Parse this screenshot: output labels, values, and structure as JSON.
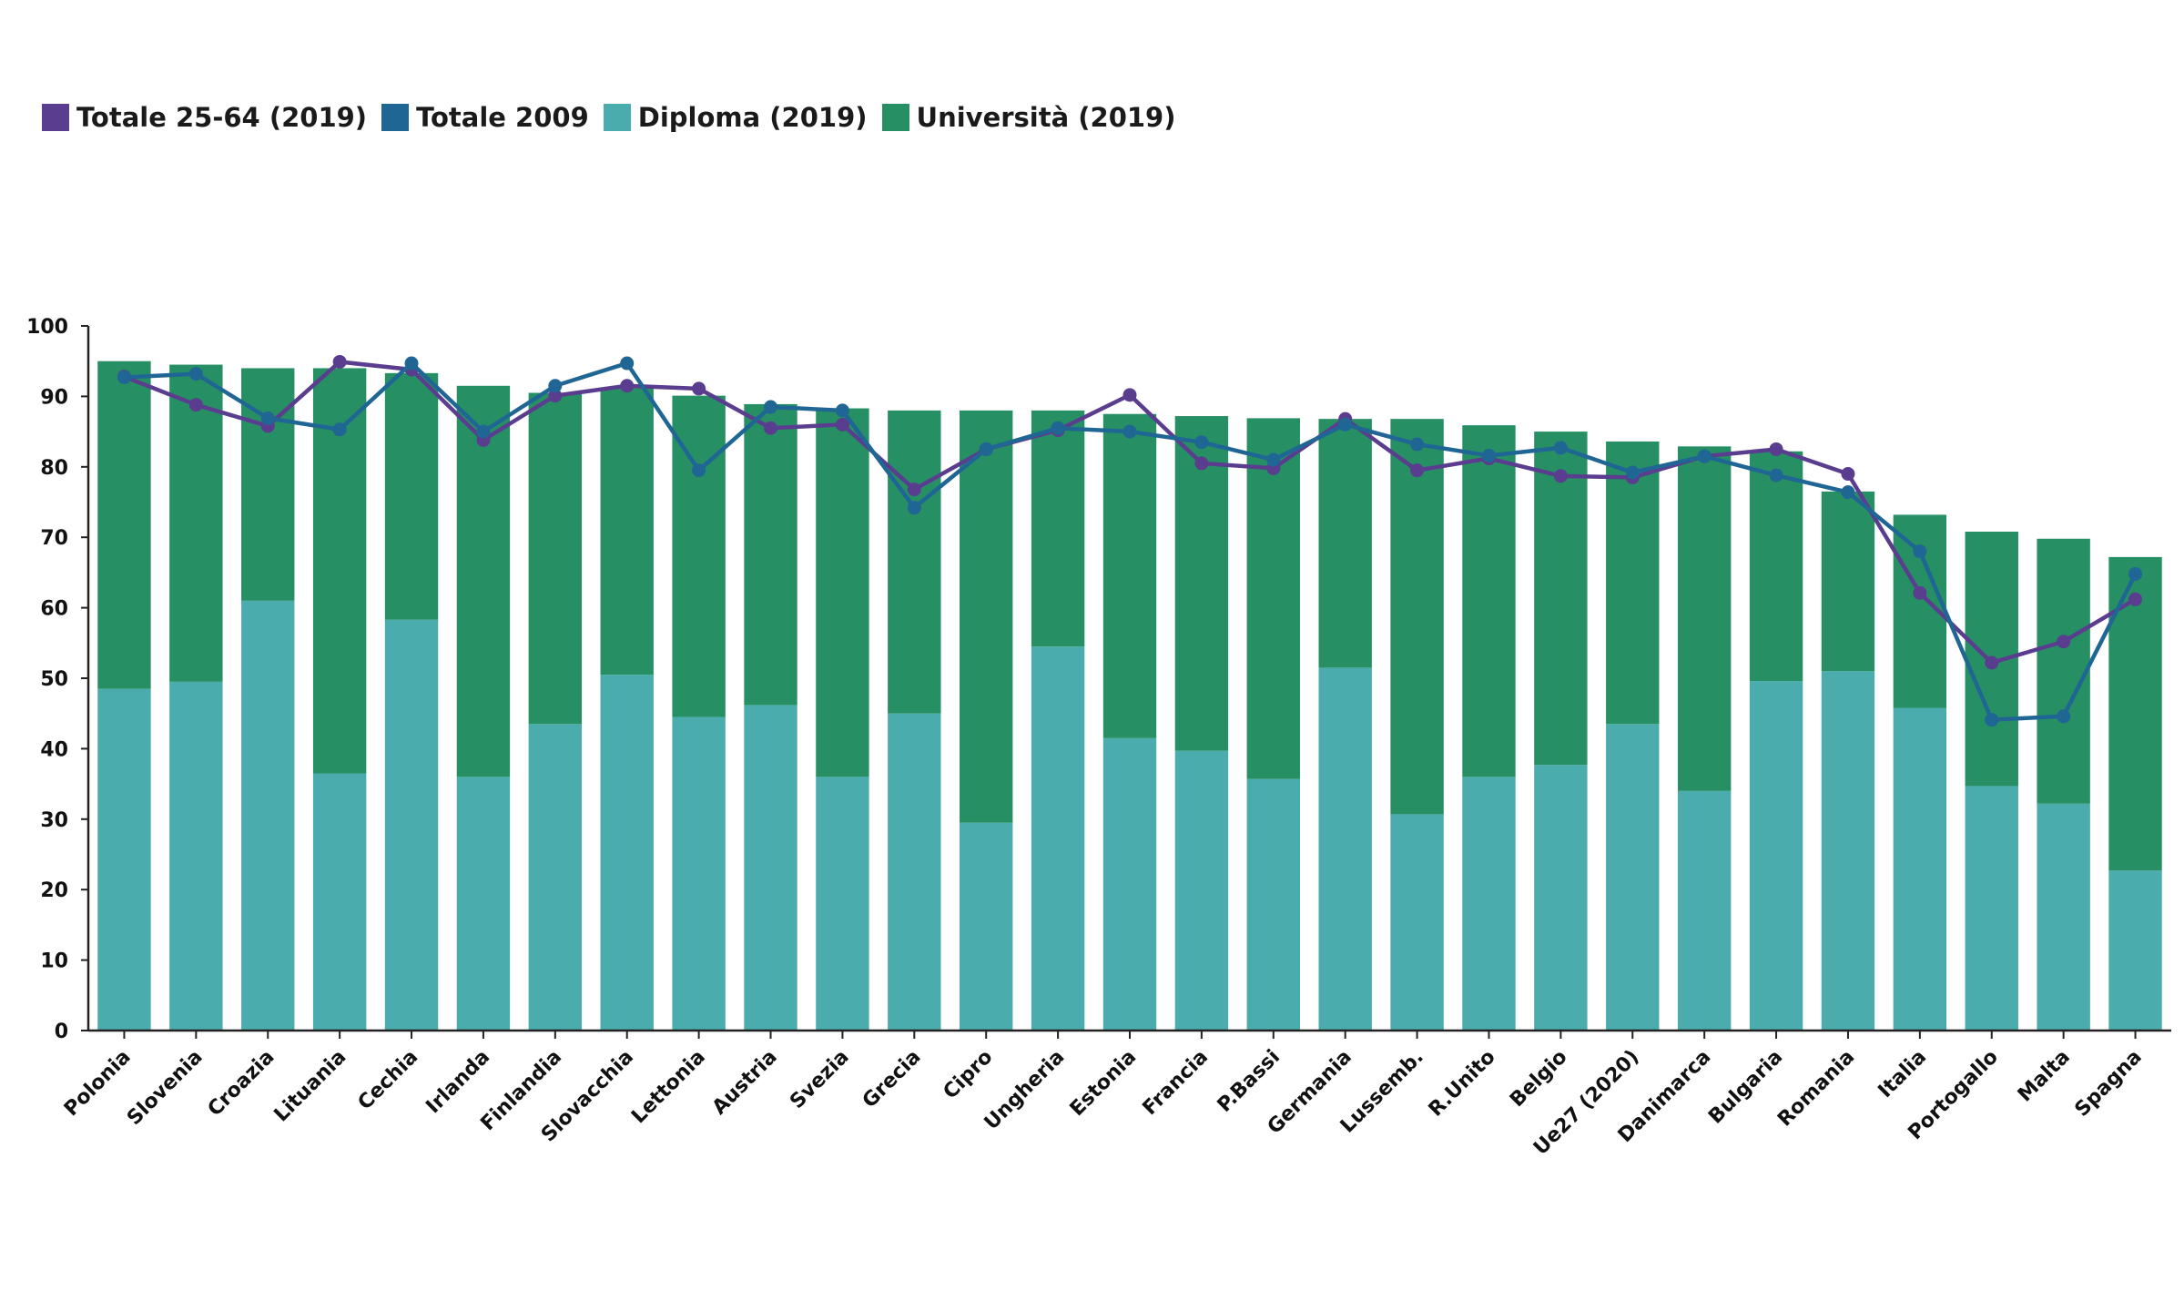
{
  "legend": [
    {
      "label": "Totale 25-64 (2019)",
      "color": "#5b3d8f"
    },
    {
      "label": "Totale 2009",
      "color": "#1f6694"
    },
    {
      "label": "Diploma (2019)",
      "color": "#4aacac"
    },
    {
      "label": "Università (2019)",
      "color": "#268f63"
    }
  ],
  "chart_data": {
    "type": "bar",
    "stacked": true,
    "ylim": [
      0,
      100
    ],
    "yticks": [
      0,
      10,
      20,
      30,
      40,
      50,
      60,
      70,
      80,
      90,
      100
    ],
    "grid": false,
    "legend_position": "top-left",
    "categories": [
      "Polonia",
      "Slovenia",
      "Croazia",
      "Lituania",
      "Cechia",
      "Irlanda",
      "Finlandia",
      "Slovacchia",
      "Lettonia",
      "Austria",
      "Svezia",
      "Grecia",
      "Cipro",
      "Ungheria",
      "Estonia",
      "Francia",
      "P.Bassi",
      "Germania",
      "Lussemb.",
      "R.Unito",
      "Belgio",
      "Ue27 (2020)",
      "Danimarca",
      "Bulgaria",
      "Romania",
      "Italia",
      "Portogallo",
      "Malta",
      "Spagna"
    ],
    "series": [
      {
        "name": "Diploma (2019)",
        "kind": "bar",
        "color": "#4aacac",
        "values": [
          48.5,
          49.5,
          61.0,
          36.5,
          58.3,
          36.0,
          43.5,
          50.5,
          44.5,
          46.2,
          36.0,
          45.0,
          29.5,
          54.5,
          41.5,
          39.7,
          35.7,
          51.5,
          30.7,
          36.0,
          37.7,
          43.5,
          34.0,
          49.6,
          51.0,
          45.8,
          34.7,
          32.2,
          22.7
        ]
      },
      {
        "name": "Università (2019)",
        "kind": "bar",
        "color": "#268f63",
        "values": [
          46.5,
          45.0,
          33.0,
          57.5,
          35.0,
          55.5,
          47.0,
          40.7,
          45.6,
          42.7,
          52.3,
          43.0,
          58.5,
          33.5,
          46.0,
          47.5,
          51.2,
          35.3,
          56.1,
          49.9,
          47.3,
          40.1,
          48.9,
          32.6,
          25.5,
          27.4,
          36.1,
          37.6,
          44.5
        ]
      },
      {
        "name": "Totale 25-64 (2019)",
        "kind": "line",
        "color": "#5b3d8f",
        "values": [
          92.8,
          88.8,
          85.8,
          94.9,
          93.8,
          83.8,
          90.1,
          91.5,
          91.1,
          85.5,
          86.0,
          76.8,
          82.5,
          85.2,
          90.2,
          80.5,
          79.8,
          86.8,
          79.5,
          81.2,
          78.7,
          78.5,
          81.5,
          82.5,
          79.0,
          62.1,
          52.2,
          55.2,
          61.2
        ]
      },
      {
        "name": "Totale 2009",
        "kind": "line",
        "color": "#1f6694",
        "values": [
          92.7,
          93.2,
          86.9,
          85.3,
          94.7,
          85.0,
          91.5,
          94.7,
          79.5,
          88.5,
          88.0,
          74.2,
          82.5,
          85.5,
          85.0,
          83.5,
          81.0,
          86.0,
          83.2,
          81.6,
          82.7,
          79.2,
          81.5,
          78.8,
          76.4,
          68.0,
          44.1,
          44.6,
          64.8
        ]
      }
    ]
  }
}
